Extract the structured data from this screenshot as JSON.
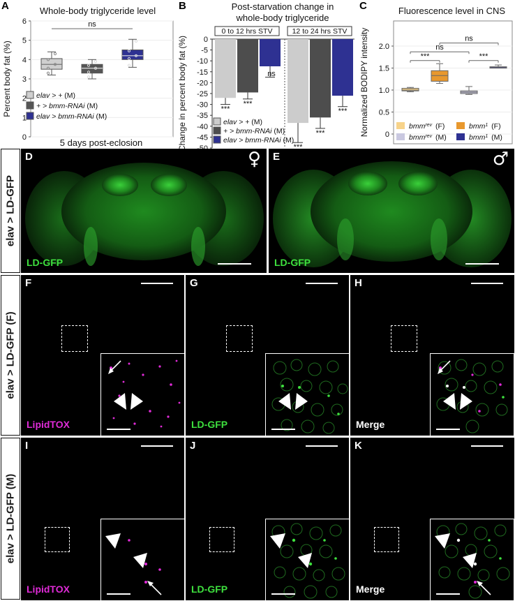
{
  "panel_letters": [
    "A",
    "B",
    "C",
    "D",
    "E",
    "F",
    "G",
    "H",
    "I",
    "K",
    "J"
  ],
  "panelA": {
    "letter": "A",
    "title": "Whole-body triglyceride level",
    "xlabel": "5 days post-eclosion",
    "legend": [
      "elav > + (M)",
      "+ > bmm-RNAi (M)",
      "elav > bmm-RNAi (M)"
    ],
    "sig": "ns"
  },
  "panelB": {
    "letter": "B",
    "title_line1": "Post-starvation change in",
    "title_line2": "whole-body triglyceride",
    "group1": "0 to 12 hrs STV",
    "group2": "12 to 24 hrs STV",
    "legend": [
      "elav > + (M)",
      "+ > bmm-RNAi (M)",
      "elav > bmm-RNAi (M)"
    ],
    "sig_labels": [
      "***",
      "***",
      "ns",
      "***",
      "***",
      "***"
    ]
  },
  "panelC": {
    "letter": "C",
    "title": "Fluorescence level in CNS",
    "legend": [
      "bmm^rev (F)",
      "bmm^1 (F)",
      "bmm^rev (M)",
      "bmm^1 (M)"
    ],
    "sig_labels": [
      "***",
      "***",
      "ns",
      "ns"
    ]
  },
  "chart_data": [
    {
      "type": "box",
      "title": "Whole-body triglyceride level",
      "xlabel": "5 days post-eclosion",
      "ylabel": "Percent body fat (%)",
      "ylim": [
        0,
        6
      ],
      "yticks": [
        0,
        1,
        2,
        3,
        4,
        5,
        6
      ],
      "categories": [
        "elav > + (M)",
        "+ > bmm-RNAi (M)",
        "elav > bmm-RNAi (M)"
      ],
      "boxes": [
        {
          "min": 3.2,
          "q1": 3.5,
          "median": 3.75,
          "q3": 4.05,
          "max": 4.4
        },
        {
          "min": 3.0,
          "q1": 3.3,
          "median": 3.55,
          "q3": 3.75,
          "max": 4.0
        },
        {
          "min": 3.6,
          "q1": 4.0,
          "median": 4.2,
          "q3": 4.5,
          "max": 5.05
        }
      ],
      "colors": [
        "#cfcfcf",
        "#555555",
        "#2e3192"
      ],
      "significance": [
        {
          "from": 0,
          "to": 2,
          "label": "ns"
        }
      ],
      "grid": true
    },
    {
      "type": "bar",
      "title": "Post-starvation change in whole-body triglyceride",
      "ylabel": "Change in percent body fat (%)",
      "ylim": [
        -50,
        0
      ],
      "yticks": [
        0,
        -5,
        -10,
        -15,
        -20,
        -25,
        -30,
        -35,
        -40,
        -45,
        -50
      ],
      "groups": [
        "0 to 12 hrs STV",
        "12 to 24 hrs STV"
      ],
      "series": [
        {
          "name": "elav > + (M)",
          "values": [
            -27,
            -38.5
          ],
          "errors": [
            3,
            9
          ]
        },
        {
          "name": "+ > bmm-RNAi (M)",
          "values": [
            -24.5,
            -36
          ],
          "errors": [
            3,
            5
          ]
        },
        {
          "name": "elav > bmm-RNAi (M)",
          "values": [
            -12.5,
            -26
          ],
          "errors": [
            5,
            5
          ]
        }
      ],
      "colors": [
        "#cccccc",
        "#4d4d4d",
        "#2e3192"
      ],
      "significance": [
        "***",
        "***",
        "ns",
        "***",
        "***",
        "***"
      ]
    },
    {
      "type": "box",
      "title": "Fluorescence level in CNS",
      "ylabel": "Normalized BODIPY intensity",
      "ylim": [
        0,
        2.0
      ],
      "yticks": [
        0,
        0.5,
        1.0,
        1.5,
        2.0
      ],
      "categories": [
        "bmm^rev (F)",
        "bmm^1 (F)",
        "bmm^rev (M)",
        "bmm^1 (M)"
      ],
      "boxes": [
        {
          "min": 0.96,
          "q1": 0.98,
          "median": 1.0,
          "q3": 1.04,
          "max": 1.06
        },
        {
          "min": 1.15,
          "q1": 1.2,
          "median": 1.33,
          "q3": 1.44,
          "max": 1.6
        },
        {
          "min": 0.9,
          "q1": 0.92,
          "median": 0.95,
          "q3": 0.98,
          "max": 1.08
        },
        {
          "min": 1.51,
          "q1": 1.51,
          "median": 1.52,
          "q3": 1.53,
          "max": 1.57
        }
      ],
      "colors": [
        "#f7d38a",
        "#e8982e",
        "#c9c8e0",
        "#2e3192"
      ],
      "significance": [
        {
          "from": 0,
          "to": 1,
          "label": "***"
        },
        {
          "from": 2,
          "to": 3,
          "label": "***"
        },
        {
          "from": 0,
          "to": 2,
          "label": "ns"
        },
        {
          "from": 1,
          "to": 3,
          "label": "ns"
        }
      ],
      "grid": true
    }
  ],
  "rows": {
    "top": "elav > LD-GFP",
    "middle": "elav > LD-GFP (F)",
    "bottom": "elav > LD-GFP (M)"
  },
  "micrographs": {
    "D": {
      "letter": "D",
      "channel": "LD-GFP",
      "sex": "♀"
    },
    "E": {
      "letter": "E",
      "channel": "LD-GFP",
      "sex": "♂"
    },
    "F": {
      "letter": "F",
      "channel": "LipidTOX"
    },
    "G": {
      "letter": "G",
      "channel": "LD-GFP"
    },
    "H": {
      "letter": "H",
      "channel": "Merge"
    },
    "I": {
      "letter": "I",
      "channel": "LipidTOX"
    },
    "J": {
      "letter": "J",
      "channel": "LD-GFP"
    },
    "K": {
      "letter": "K",
      "channel": "Merge"
    }
  },
  "colors": {
    "gfp": "#3ee03e",
    "lipidtox": "#e02bd8",
    "navy": "#2e3192",
    "orange": "#e8982e"
  }
}
